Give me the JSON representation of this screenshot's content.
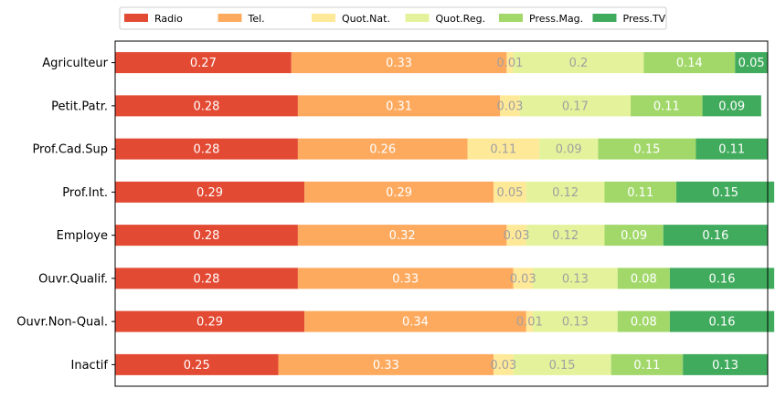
{
  "chart_data": {
    "type": "bar",
    "orientation": "horizontal",
    "stacked": true,
    "categories": [
      "Agriculteur",
      "Petit.Patr.",
      "Prof.Cad.Sup",
      "Prof.Int.",
      "Employe",
      "Ouvr.Qualif.",
      "Ouvr.Non-Qual.",
      "Inactif"
    ],
    "series": [
      {
        "name": "Radio",
        "color": "#e34a33",
        "label_color": "#ffffff",
        "values": [
          0.27,
          0.28,
          0.28,
          0.29,
          0.28,
          0.28,
          0.29,
          0.25
        ]
      },
      {
        "name": "Tel.",
        "color": "#fdaa5f",
        "label_color": "#ffffff",
        "values": [
          0.33,
          0.31,
          0.26,
          0.29,
          0.32,
          0.33,
          0.34,
          0.33
        ]
      },
      {
        "name": "Quot.Nat.",
        "color": "#fee999",
        "label_color": "#a0a0a0",
        "values": [
          0.01,
          0.03,
          0.11,
          0.05,
          0.03,
          0.03,
          0.01,
          0.03
        ]
      },
      {
        "name": "Quot.Reg.",
        "color": "#e4f39b",
        "label_color": "#a0a0a0",
        "values": [
          0.2,
          0.17,
          0.09,
          0.12,
          0.12,
          0.13,
          0.13,
          0.15
        ]
      },
      {
        "name": "Press.Mag.",
        "color": "#a2d86a",
        "label_color": "#ffffff",
        "values": [
          0.14,
          0.11,
          0.15,
          0.11,
          0.09,
          0.08,
          0.08,
          0.11
        ]
      },
      {
        "name": "Press.TV",
        "color": "#41ab5d",
        "label_color": "#ffffff",
        "values": [
          0.05,
          0.09,
          0.11,
          0.15,
          0.16,
          0.16,
          0.16,
          0.13
        ]
      }
    ],
    "title": "",
    "xlabel": "",
    "ylabel": "",
    "xlim": [
      0,
      1
    ],
    "x_axis_visible": false,
    "grid": false,
    "legend_position": "top"
  }
}
